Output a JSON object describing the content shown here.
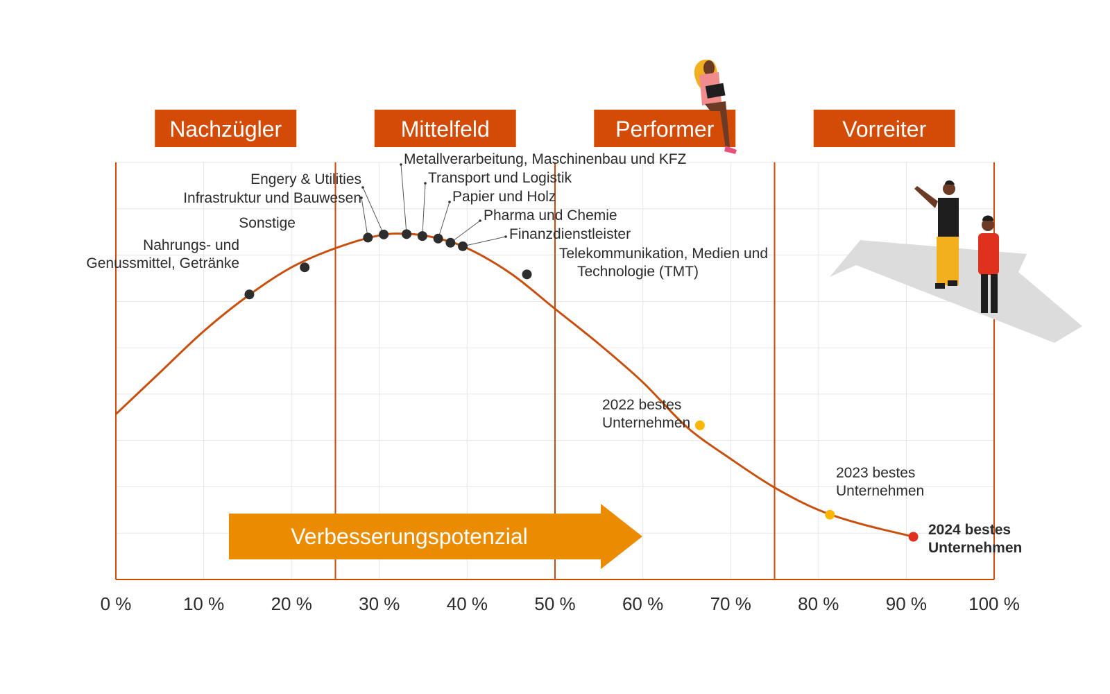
{
  "colors": {
    "accent": "#cc4a05",
    "curve": "#c8500f",
    "segment_box": "#d34b06",
    "arrow": "#eb8c00",
    "point": "#2d2d2d",
    "best_2022": "#ffb600",
    "best_2023": "#ffb600",
    "best_2024": "#e0301e",
    "grid": "#e6e6e6"
  },
  "chart_data": {
    "type": "line",
    "xlim": [
      0,
      100
    ],
    "x_ticks": [
      "0 %",
      "10 %",
      "20 %",
      "30 %",
      "40 %",
      "50 %",
      "60 %",
      "70 %",
      "80 %",
      "90 %",
      "100 %"
    ],
    "segments": [
      {
        "label": "Nachzügler",
        "range": [
          0,
          25
        ]
      },
      {
        "label": "Mittelfeld",
        "range": [
          25,
          50
        ]
      },
      {
        "label": "Performer",
        "range": [
          50,
          75
        ]
      },
      {
        "label": "Vorreiter",
        "range": [
          75,
          100
        ]
      }
    ],
    "arrow_label": "Verbesserungspotenzial",
    "curve": [
      [
        0,
        42
      ],
      [
        5,
        55
      ],
      [
        10,
        68
      ],
      [
        15,
        79
      ],
      [
        20,
        88
      ],
      [
        25,
        94
      ],
      [
        30,
        98
      ],
      [
        33,
        98.5
      ],
      [
        36,
        97.5
      ],
      [
        40,
        94
      ],
      [
        45,
        86
      ],
      [
        50,
        75
      ],
      [
        55,
        64
      ],
      [
        60,
        52
      ],
      [
        65,
        38
      ],
      [
        70,
        28
      ],
      [
        75,
        19
      ],
      [
        80,
        12
      ],
      [
        85,
        7.5
      ],
      [
        91,
        3.5
      ]
    ],
    "points": [
      {
        "name": "Nahrungs- und Genussmittel, Getränke",
        "lines": [
          "Nahrungs- und",
          "Genussmittel, Getränke"
        ],
        "x": 15.2,
        "y": 79.5
      },
      {
        "name": "Sonstige",
        "lines": [
          "Sonstige"
        ],
        "x": 21.5,
        "y": 88
      },
      {
        "name": "Infrastruktur und Bauwesen",
        "lines": [
          "Infrastruktur und Bauwesen"
        ],
        "x": 28.7,
        "y": 97.3
      },
      {
        "name": "Engery & Utilities",
        "lines": [
          "Engery & Utilities"
        ],
        "x": 30.5,
        "y": 98.3
      },
      {
        "name": "Metallverarbeitung, Maschinenbau und KFZ",
        "lines": [
          "Metallverarbeitung, Maschinenbau und KFZ"
        ],
        "x": 33.1,
        "y": 98.4
      },
      {
        "name": "Transport und Logistik",
        "lines": [
          "Transport und Logistik"
        ],
        "x": 34.9,
        "y": 97.8
      },
      {
        "name": "Papier und Holz",
        "lines": [
          "Papier und Holz"
        ],
        "x": 36.7,
        "y": 97
      },
      {
        "name": "Pharma und Chemie",
        "lines": [
          "Pharma und Chemie"
        ],
        "x": 38.1,
        "y": 95.7
      },
      {
        "name": "Finanzdienstleister",
        "lines": [
          "Finanzdienstleister"
        ],
        "x": 39.5,
        "y": 94.6
      },
      {
        "name": "Telekommunikation, Medien und Technologie (TMT)",
        "lines": [
          "Telekommunikation, Medien und",
          "Technologie (TMT)"
        ],
        "x": 46.8,
        "y": 85.8
      }
    ],
    "best": [
      {
        "name": "2022 bestes Unternehmen",
        "lines": [
          "2022 bestes",
          "Unternehmen"
        ],
        "x": 66.5,
        "y": 38.5
      },
      {
        "name": "2023 bestes Unternehmen",
        "lines": [
          "2023 bestes",
          "Unternehmen"
        ],
        "x": 81.3,
        "y": 10.5
      },
      {
        "name": "2024 bestes Unternehmen",
        "lines": [
          "2024 bestes",
          "Unternehmen"
        ],
        "x": 90.8,
        "y": 3.6
      }
    ]
  }
}
